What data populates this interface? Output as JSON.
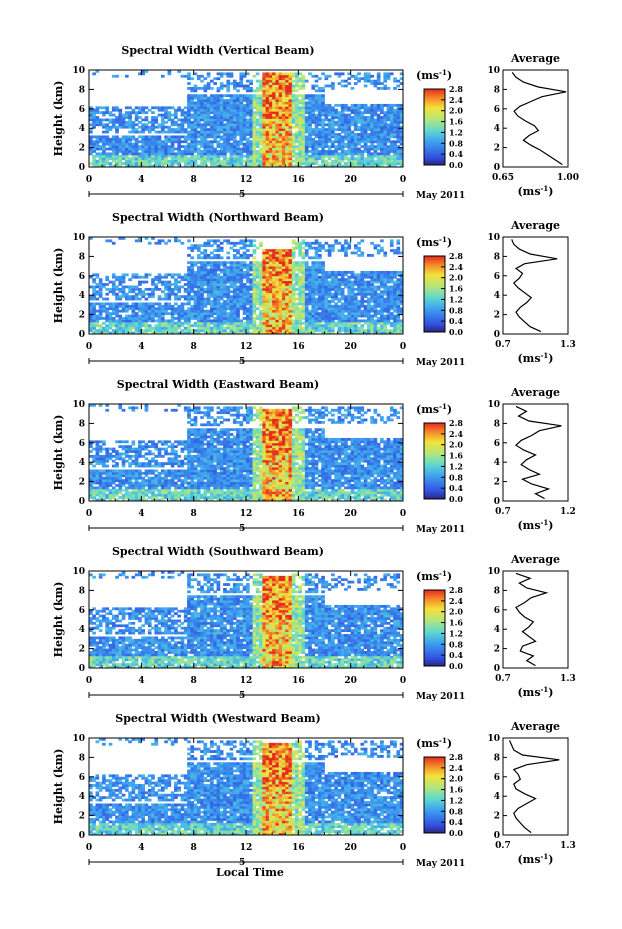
{
  "chart_data": [
    {
      "type": "heatmap",
      "title": "Spectral Width (Vertical Beam)",
      "ylabel": "Height (km)",
      "x_ticks": [
        "0",
        "4",
        "8",
        "12",
        "16",
        "20",
        "0"
      ],
      "y_ticks": [
        "0",
        "2",
        "4",
        "6",
        "8",
        "10"
      ],
      "xlim": [
        0,
        24
      ],
      "ylim": [
        0,
        10
      ],
      "date_marker": "5",
      "date_label": "May 2011",
      "colorbar": {
        "unit": "(ms",
        "unit_exp": "-1",
        "unit_close": ")",
        "ticks": [
          "2.8",
          "2.4",
          "2.0",
          "1.6",
          "1.2",
          "0.8",
          "0.4",
          "0.0"
        ],
        "range": [
          0,
          2.8
        ]
      },
      "cloud_top_km": 9.7,
      "profile": {
        "title": "Average",
        "x_ticks": [
          "0.65",
          "1.00"
        ],
        "xlim": [
          0.65,
          1.0
        ],
        "xlabel": "(ms",
        "xlabel_exp": "-1",
        "xlabel_close": ")",
        "heights": [
          0,
          0.5,
          1,
          1.5,
          2,
          2.5,
          3,
          3.5,
          4,
          4.5,
          5,
          5.5,
          6,
          6.5,
          7,
          7.5,
          8,
          8.5,
          9,
          9.5
        ],
        "values": [
          0.97,
          0.93,
          0.89,
          0.85,
          0.8,
          0.76,
          0.79,
          0.84,
          0.82,
          0.77,
          0.73,
          0.71,
          0.74,
          0.8,
          0.86,
          0.99,
          0.84,
          0.76,
          0.72,
          0.7
        ]
      }
    },
    {
      "type": "heatmap",
      "title": "Spectral Width (Northward Beam)",
      "ylabel": "Height (km)",
      "x_ticks": [
        "0",
        "4",
        "8",
        "12",
        "16",
        "20",
        "0"
      ],
      "y_ticks": [
        "0",
        "2",
        "4",
        "6",
        "8",
        "10"
      ],
      "xlim": [
        0,
        24
      ],
      "ylim": [
        0,
        10
      ],
      "date_marker": "5",
      "date_label": "May 2011",
      "colorbar": {
        "unit": "(ms",
        "unit_exp": "-1",
        "unit_close": ")",
        "ticks": [
          "2.8",
          "2.4",
          "2.0",
          "1.6",
          "1.2",
          "0.8",
          "0.4",
          "0.0"
        ],
        "range": [
          0,
          2.8
        ]
      },
      "cloud_top_km": 8.7,
      "profile": {
        "title": "Average",
        "x_ticks": [
          "0.7",
          "1.3"
        ],
        "xlim": [
          0.7,
          1.3
        ],
        "heights": [
          0,
          0.5,
          1,
          1.5,
          2,
          2.5,
          3,
          3.5,
          4,
          4.5,
          5,
          5.5,
          6,
          6.5,
          7,
          7.5,
          8,
          8.5,
          9,
          9.5
        ],
        "values": [
          1.05,
          0.95,
          0.9,
          0.85,
          0.82,
          0.86,
          0.92,
          0.96,
          0.9,
          0.84,
          0.8,
          0.85,
          0.88,
          0.82,
          0.9,
          1.2,
          0.95,
          0.85,
          0.8,
          0.78
        ],
        "xlabel": "(ms",
        "xlabel_exp": "-1",
        "xlabel_close": ")"
      }
    },
    {
      "type": "heatmap",
      "title": "Spectral Width (Eastward Beam)",
      "ylabel": "Height (km)",
      "x_ticks": [
        "0",
        "4",
        "8",
        "12",
        "16",
        "20",
        "0"
      ],
      "y_ticks": [
        "0",
        "2",
        "4",
        "6",
        "8",
        "10"
      ],
      "xlim": [
        0,
        24
      ],
      "ylim": [
        0,
        10
      ],
      "date_marker": "5",
      "date_label": "May 2011",
      "colorbar": {
        "unit": "(ms",
        "unit_exp": "-1",
        "unit_close": ")",
        "ticks": [
          "2.8",
          "2.4",
          "2.0",
          "1.6",
          "1.2",
          "0.8",
          "0.4",
          "0.0"
        ],
        "range": [
          0,
          2.8
        ]
      },
      "cloud_top_km": 9.6,
      "profile": {
        "title": "Average",
        "x_ticks": [
          "0.7",
          "1.2"
        ],
        "xlim": [
          0.7,
          1.2
        ],
        "heights": [
          0,
          0.5,
          1,
          1.5,
          2,
          2.5,
          3,
          3.5,
          4,
          4.5,
          5,
          5.5,
          6,
          6.5,
          7,
          7.5,
          8,
          8.5,
          9,
          9.5
        ],
        "values": [
          1.02,
          0.95,
          1.05,
          0.92,
          0.85,
          0.98,
          0.9,
          0.84,
          0.88,
          0.95,
          0.86,
          0.8,
          0.84,
          0.92,
          0.98,
          1.15,
          0.9,
          0.82,
          0.88,
          0.8
        ],
        "xlabel": "(ms",
        "xlabel_exp": "-1",
        "xlabel_close": ")"
      }
    },
    {
      "type": "heatmap",
      "title": "Spectral Width (Southward Beam)",
      "ylabel": "Height (km)",
      "x_ticks": [
        "0",
        "4",
        "8",
        "12",
        "16",
        "20",
        "0"
      ],
      "y_ticks": [
        "0",
        "2",
        "4",
        "6",
        "8",
        "10"
      ],
      "xlim": [
        0,
        24
      ],
      "ylim": [
        0,
        10
      ],
      "date_marker": "5",
      "date_label": "May 2011",
      "colorbar": {
        "unit": "(ms",
        "unit_exp": "-1",
        "unit_close": ")",
        "ticks": [
          "2.8",
          "2.4",
          "2.0",
          "1.6",
          "1.2",
          "0.8",
          "0.4",
          "0.0"
        ],
        "range": [
          0,
          2.8
        ]
      },
      "cloud_top_km": 9.6,
      "profile": {
        "title": "Average",
        "x_ticks": [
          "0.7",
          "1.3"
        ],
        "xlim": [
          0.7,
          1.3
        ],
        "heights": [
          0,
          0.5,
          1,
          1.5,
          2,
          2.5,
          3,
          3.5,
          4,
          4.5,
          5,
          5.5,
          6,
          6.5,
          7,
          7.5,
          8,
          8.5,
          9,
          9.5
        ],
        "values": [
          1.0,
          0.92,
          0.98,
          0.86,
          0.88,
          1.0,
          0.94,
          0.88,
          0.94,
          0.98,
          0.9,
          0.85,
          0.82,
          0.9,
          0.96,
          1.1,
          0.92,
          0.85,
          0.95,
          0.82
        ],
        "xlabel": "(ms",
        "xlabel_exp": "-1",
        "xlabel_close": ")"
      }
    },
    {
      "type": "heatmap",
      "title": "Spectral Width (Westward Beam)",
      "ylabel": "Height (km)",
      "xlabel": "Local Time",
      "x_ticks": [
        "0",
        "4",
        "8",
        "12",
        "16",
        "20",
        "0"
      ],
      "y_ticks": [
        "0",
        "2",
        "4",
        "6",
        "8",
        "10"
      ],
      "xlim": [
        0,
        24
      ],
      "ylim": [
        0,
        10
      ],
      "date_marker": "5",
      "date_label": "May 2011",
      "colorbar": {
        "unit": "(ms",
        "unit_exp": "-1",
        "unit_close": ")",
        "ticks": [
          "2.8",
          "2.4",
          "2.0",
          "1.6",
          "1.2",
          "0.8",
          "0.4",
          "0.0"
        ],
        "range": [
          0,
          2.8
        ]
      },
      "cloud_top_km": 9.6,
      "profile": {
        "title": "Average",
        "x_ticks": [
          "0.7",
          "1.3"
        ],
        "xlim": [
          0.7,
          1.3
        ],
        "heights": [
          0,
          0.5,
          1,
          1.5,
          2,
          2.5,
          3,
          3.5,
          4,
          4.5,
          5,
          5.5,
          6,
          6.5,
          7,
          7.5,
          8,
          8.5,
          9,
          9.5
        ],
        "values": [
          0.96,
          0.9,
          0.86,
          0.82,
          0.8,
          0.84,
          0.92,
          1.0,
          0.9,
          0.82,
          0.8,
          0.86,
          0.84,
          0.8,
          0.92,
          1.22,
          0.88,
          0.8,
          0.78,
          0.76
        ],
        "xlabel": "(ms",
        "xlabel_exp": "-1",
        "xlabel_close": ")"
      }
    }
  ]
}
